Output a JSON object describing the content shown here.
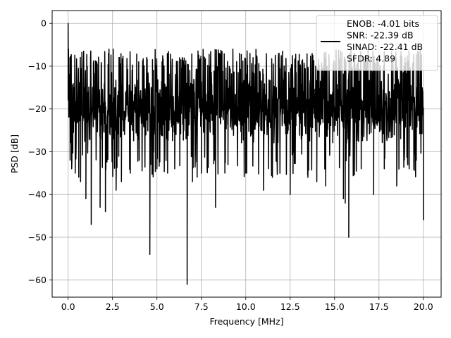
{
  "chart_data": {
    "type": "line",
    "title": "",
    "xlabel": "Frequency [MHz]",
    "ylabel": "PSD [dB]",
    "xlim": [
      -0.9,
      21.0
    ],
    "ylim": [
      -64,
      3
    ],
    "xticks": [
      0.0,
      2.5,
      5.0,
      7.5,
      10.0,
      12.5,
      15.0,
      17.5,
      20.0
    ],
    "xtick_labels": [
      "0.0",
      "2.5",
      "5.0",
      "7.5",
      "10.0",
      "12.5",
      "15.0",
      "17.5",
      "20.0"
    ],
    "yticks": [
      0,
      -10,
      -20,
      -30,
      -40,
      -50,
      -60
    ],
    "ytick_labels": [
      "0",
      "−10",
      "−20",
      "−30",
      "−40",
      "−50",
      "−60"
    ],
    "grid": true,
    "legend_position": "top-right",
    "line_color": "#000000",
    "series": [
      {
        "legend_lines": [
          "ENOB: -4.01 bits",
          "SNR: -22.39 dB",
          "SINAD: -22.41 dB",
          "SFDR: 4.89"
        ],
        "noise_floor_mean_db": -19,
        "noise_floor_range_db": [
          -30,
          -6
        ],
        "x_range_mhz": [
          0.0,
          20.0
        ],
        "points": [
          {
            "x": 0.0,
            "y": 0
          },
          {
            "x": 0.02,
            "y": -6
          },
          {
            "x": 0.05,
            "y": -12
          },
          {
            "x": 0.1,
            "y": -8
          },
          {
            "x": 0.2,
            "y": -34
          },
          {
            "x": 0.4,
            "y": -35
          },
          {
            "x": 0.7,
            "y": -37
          },
          {
            "x": 1.0,
            "y": -41
          },
          {
            "x": 1.3,
            "y": -47
          },
          {
            "x": 1.8,
            "y": -43
          },
          {
            "x": 2.1,
            "y": -44
          },
          {
            "x": 2.7,
            "y": -39
          },
          {
            "x": 3.0,
            "y": -37
          },
          {
            "x": 3.5,
            "y": -35
          },
          {
            "x": 4.0,
            "y": -32
          },
          {
            "x": 4.6,
            "y": -54
          },
          {
            "x": 5.0,
            "y": -34
          },
          {
            "x": 5.6,
            "y": -35
          },
          {
            "x": 6.0,
            "y": -34
          },
          {
            "x": 6.7,
            "y": -61
          },
          {
            "x": 7.0,
            "y": -37
          },
          {
            "x": 7.5,
            "y": -35
          },
          {
            "x": 8.3,
            "y": -43
          },
          {
            "x": 9.0,
            "y": -33
          },
          {
            "x": 10.0,
            "y": -35
          },
          {
            "x": 11.0,
            "y": -39
          },
          {
            "x": 11.5,
            "y": -36
          },
          {
            "x": 12.5,
            "y": -40
          },
          {
            "x": 13.5,
            "y": -36
          },
          {
            "x": 14.0,
            "y": -37
          },
          {
            "x": 14.5,
            "y": -38
          },
          {
            "x": 15.5,
            "y": -41
          },
          {
            "x": 15.6,
            "y": -42
          },
          {
            "x": 15.8,
            "y": -50
          },
          {
            "x": 16.5,
            "y": -34
          },
          {
            "x": 17.2,
            "y": -40
          },
          {
            "x": 17.8,
            "y": -34
          },
          {
            "x": 18.5,
            "y": -38
          },
          {
            "x": 19.2,
            "y": -34
          },
          {
            "x": 19.6,
            "y": -32
          },
          {
            "x": 20.0,
            "y": -46
          }
        ]
      }
    ]
  }
}
